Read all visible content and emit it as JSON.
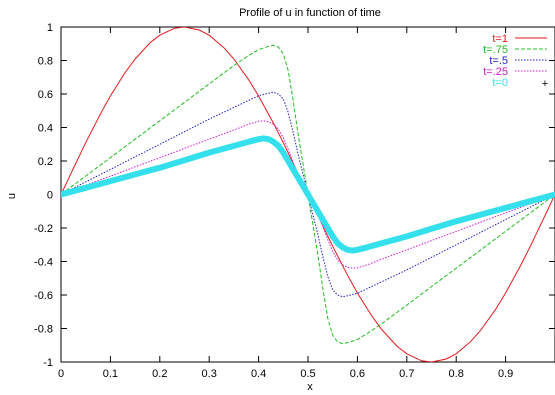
{
  "chart_data": {
    "type": "line",
    "title": "Profile of u in function of time",
    "xlabel": "x",
    "ylabel": "u",
    "xlim": [
      0,
      1
    ],
    "ylim": [
      -1,
      1
    ],
    "x_ticks": [
      0,
      0.1,
      0.2,
      0.3,
      0.4,
      0.5,
      0.6,
      0.7,
      0.8,
      0.9
    ],
    "x_tick_labels": [
      "0",
      "0.1",
      "0.2",
      "0.3",
      "0.4",
      "0.5",
      "0.6",
      "0.7",
      "0.8",
      "0.9"
    ],
    "y_ticks": [
      1,
      0.8,
      0.6,
      0.4,
      0.2,
      0,
      -0.2,
      -0.4,
      -0.6,
      -0.8,
      -1
    ],
    "y_tick_labels": [
      "1",
      "0.8",
      "0.6",
      "0.4",
      "0.2",
      "0",
      "-0.2",
      "-0.4",
      "-0.6",
      "-0.8",
      "-1"
    ],
    "grid": false,
    "legend_position": "top-right",
    "series": [
      {
        "name": "t=1",
        "color": "#e31a1c",
        "style": "solid",
        "points": [
          [
            0,
            0
          ],
          [
            0.02,
            0.125
          ],
          [
            0.05,
            0.309
          ],
          [
            0.08,
            0.482
          ],
          [
            0.1,
            0.588
          ],
          [
            0.13,
            0.729
          ],
          [
            0.15,
            0.809
          ],
          [
            0.18,
            0.905
          ],
          [
            0.2,
            0.951
          ],
          [
            0.23,
            0.993
          ],
          [
            0.25,
            1.0
          ],
          [
            0.28,
            0.982
          ],
          [
            0.3,
            0.951
          ],
          [
            0.33,
            0.876
          ],
          [
            0.35,
            0.809
          ],
          [
            0.38,
            0.685
          ],
          [
            0.4,
            0.588
          ],
          [
            0.43,
            0.426
          ],
          [
            0.45,
            0.309
          ],
          [
            0.48,
            0.125
          ],
          [
            0.5,
            0.0
          ],
          [
            0.52,
            -0.125
          ],
          [
            0.55,
            -0.309
          ],
          [
            0.58,
            -0.482
          ],
          [
            0.6,
            -0.588
          ],
          [
            0.63,
            -0.729
          ],
          [
            0.65,
            -0.809
          ],
          [
            0.68,
            -0.905
          ],
          [
            0.7,
            -0.951
          ],
          [
            0.73,
            -0.993
          ],
          [
            0.75,
            -1.0
          ],
          [
            0.78,
            -0.982
          ],
          [
            0.8,
            -0.951
          ],
          [
            0.83,
            -0.876
          ],
          [
            0.85,
            -0.809
          ],
          [
            0.88,
            -0.685
          ],
          [
            0.9,
            -0.588
          ],
          [
            0.93,
            -0.426
          ],
          [
            0.95,
            -0.309
          ],
          [
            0.98,
            -0.125
          ],
          [
            1.0,
            0.0
          ]
        ]
      },
      {
        "name": "t=.75",
        "color": "#1fc01f",
        "style": "dashed",
        "points": [
          [
            0,
            0
          ],
          [
            0.05,
            0.11
          ],
          [
            0.1,
            0.22
          ],
          [
            0.15,
            0.33
          ],
          [
            0.2,
            0.44
          ],
          [
            0.25,
            0.55
          ],
          [
            0.3,
            0.66
          ],
          [
            0.35,
            0.77
          ],
          [
            0.38,
            0.83
          ],
          [
            0.4,
            0.865
          ],
          [
            0.42,
            0.885
          ],
          [
            0.43,
            0.89
          ],
          [
            0.44,
            0.88
          ],
          [
            0.45,
            0.84
          ],
          [
            0.46,
            0.74
          ],
          [
            0.47,
            0.56
          ],
          [
            0.48,
            0.36
          ],
          [
            0.49,
            0.18
          ],
          [
            0.5,
            0.0
          ],
          [
            0.51,
            -0.18
          ],
          [
            0.52,
            -0.36
          ],
          [
            0.53,
            -0.56
          ],
          [
            0.54,
            -0.74
          ],
          [
            0.55,
            -0.84
          ],
          [
            0.56,
            -0.88
          ],
          [
            0.57,
            -0.89
          ],
          [
            0.58,
            -0.885
          ],
          [
            0.6,
            -0.865
          ],
          [
            0.62,
            -0.83
          ],
          [
            0.65,
            -0.77
          ],
          [
            0.7,
            -0.66
          ],
          [
            0.75,
            -0.55
          ],
          [
            0.8,
            -0.44
          ],
          [
            0.85,
            -0.33
          ],
          [
            0.9,
            -0.22
          ],
          [
            0.95,
            -0.11
          ],
          [
            1.0,
            0.0
          ]
        ]
      },
      {
        "name": "t=.5",
        "color": "#1e1ec8",
        "style": "dotted",
        "points": [
          [
            0,
            0
          ],
          [
            0.05,
            0.075
          ],
          [
            0.1,
            0.15
          ],
          [
            0.15,
            0.225
          ],
          [
            0.2,
            0.3
          ],
          [
            0.25,
            0.375
          ],
          [
            0.3,
            0.45
          ],
          [
            0.35,
            0.52
          ],
          [
            0.4,
            0.59
          ],
          [
            0.42,
            0.605
          ],
          [
            0.43,
            0.61
          ],
          [
            0.44,
            0.6
          ],
          [
            0.45,
            0.57
          ],
          [
            0.46,
            0.49
          ],
          [
            0.47,
            0.37
          ],
          [
            0.48,
            0.24
          ],
          [
            0.49,
            0.12
          ],
          [
            0.5,
            0.0
          ],
          [
            0.51,
            -0.12
          ],
          [
            0.52,
            -0.24
          ],
          [
            0.53,
            -0.37
          ],
          [
            0.54,
            -0.49
          ],
          [
            0.55,
            -0.57
          ],
          [
            0.56,
            -0.6
          ],
          [
            0.57,
            -0.61
          ],
          [
            0.58,
            -0.605
          ],
          [
            0.6,
            -0.59
          ],
          [
            0.65,
            -0.52
          ],
          [
            0.7,
            -0.45
          ],
          [
            0.75,
            -0.375
          ],
          [
            0.8,
            -0.3
          ],
          [
            0.85,
            -0.225
          ],
          [
            0.9,
            -0.15
          ],
          [
            0.95,
            -0.075
          ],
          [
            1.0,
            0.0
          ]
        ]
      },
      {
        "name": "t=.25",
        "color": "#d417d4",
        "style": "dotted",
        "points": [
          [
            0,
            0
          ],
          [
            0.05,
            0.055
          ],
          [
            0.1,
            0.11
          ],
          [
            0.15,
            0.165
          ],
          [
            0.2,
            0.22
          ],
          [
            0.25,
            0.275
          ],
          [
            0.3,
            0.33
          ],
          [
            0.35,
            0.385
          ],
          [
            0.38,
            0.42
          ],
          [
            0.4,
            0.437
          ],
          [
            0.41,
            0.44
          ],
          [
            0.42,
            0.435
          ],
          [
            0.43,
            0.42
          ],
          [
            0.44,
            0.39
          ],
          [
            0.45,
            0.34
          ],
          [
            0.46,
            0.27
          ],
          [
            0.47,
            0.19
          ],
          [
            0.48,
            0.12
          ],
          [
            0.49,
            0.06
          ],
          [
            0.5,
            0.0
          ],
          [
            0.51,
            -0.06
          ],
          [
            0.52,
            -0.12
          ],
          [
            0.53,
            -0.19
          ],
          [
            0.54,
            -0.27
          ],
          [
            0.55,
            -0.34
          ],
          [
            0.56,
            -0.39
          ],
          [
            0.57,
            -0.42
          ],
          [
            0.58,
            -0.435
          ],
          [
            0.59,
            -0.44
          ],
          [
            0.6,
            -0.437
          ],
          [
            0.62,
            -0.42
          ],
          [
            0.65,
            -0.385
          ],
          [
            0.7,
            -0.33
          ],
          [
            0.75,
            -0.275
          ],
          [
            0.8,
            -0.22
          ],
          [
            0.85,
            -0.165
          ],
          [
            0.9,
            -0.11
          ],
          [
            0.95,
            -0.055
          ],
          [
            1.0,
            0.0
          ]
        ]
      },
      {
        "name": "t=0",
        "color": "#33e0ec",
        "style": "points",
        "points": [
          [
            0,
            0
          ],
          [
            0.05,
            0.04
          ],
          [
            0.1,
            0.08
          ],
          [
            0.15,
            0.12
          ],
          [
            0.2,
            0.16
          ],
          [
            0.25,
            0.205
          ],
          [
            0.3,
            0.25
          ],
          [
            0.35,
            0.29
          ],
          [
            0.38,
            0.315
          ],
          [
            0.4,
            0.33
          ],
          [
            0.41,
            0.335
          ],
          [
            0.42,
            0.33
          ],
          [
            0.43,
            0.315
          ],
          [
            0.44,
            0.29
          ],
          [
            0.45,
            0.25
          ],
          [
            0.46,
            0.2
          ],
          [
            0.47,
            0.15
          ],
          [
            0.48,
            0.1
          ],
          [
            0.49,
            0.05
          ],
          [
            0.5,
            0.0
          ],
          [
            0.51,
            -0.05
          ],
          [
            0.52,
            -0.1
          ],
          [
            0.53,
            -0.15
          ],
          [
            0.54,
            -0.2
          ],
          [
            0.55,
            -0.25
          ],
          [
            0.56,
            -0.29
          ],
          [
            0.57,
            -0.315
          ],
          [
            0.58,
            -0.33
          ],
          [
            0.59,
            -0.335
          ],
          [
            0.6,
            -0.33
          ],
          [
            0.62,
            -0.315
          ],
          [
            0.65,
            -0.29
          ],
          [
            0.7,
            -0.25
          ],
          [
            0.75,
            -0.205
          ],
          [
            0.8,
            -0.16
          ],
          [
            0.85,
            -0.12
          ],
          [
            0.9,
            -0.08
          ],
          [
            0.95,
            -0.04
          ],
          [
            1.0,
            0.0
          ]
        ]
      }
    ]
  }
}
